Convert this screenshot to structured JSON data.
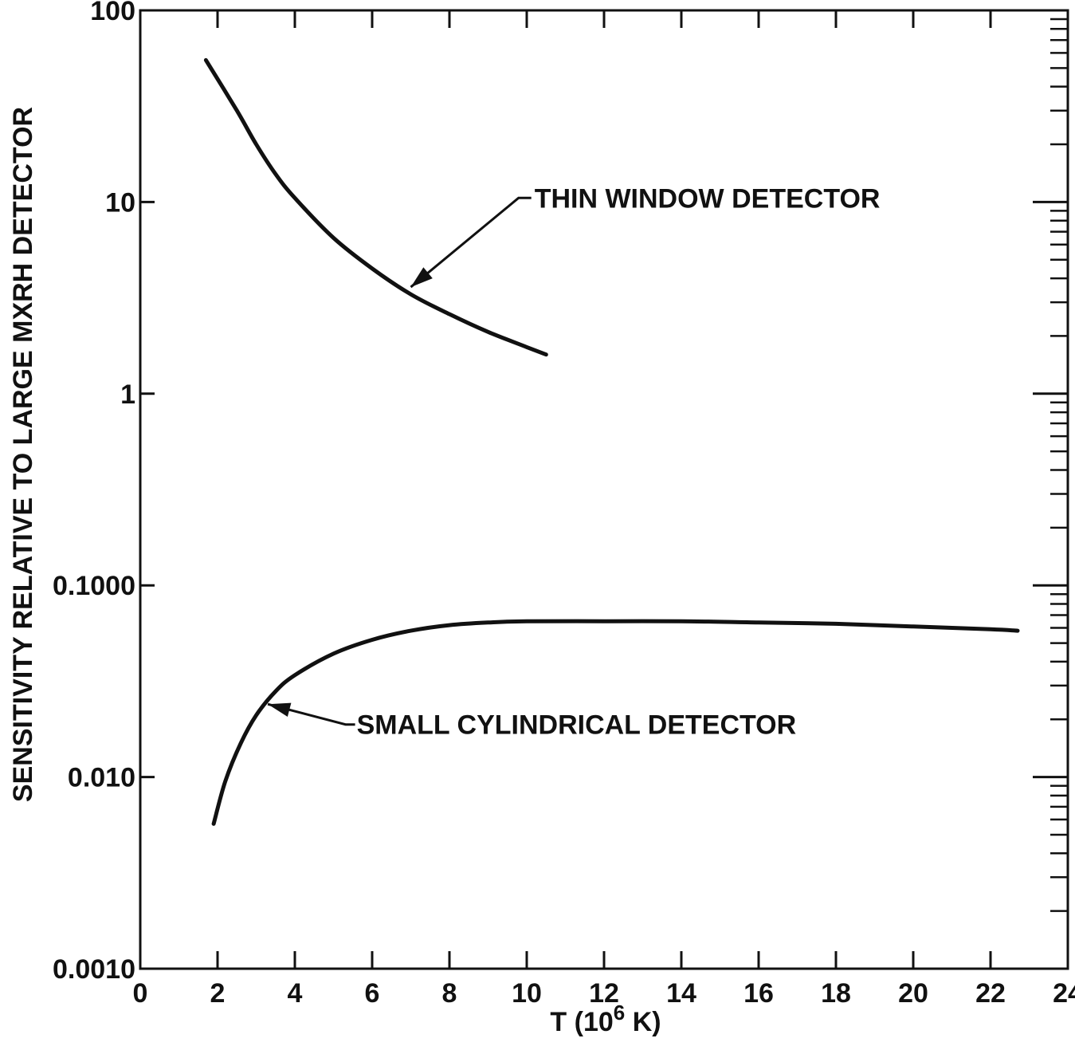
{
  "chart_data": {
    "type": "line",
    "title": "",
    "xlabel": "T (10",
    "xlabel_exp": "6",
    "xlabel_tail": " K)",
    "ylabel": "SENSITIVITY RELATIVE TO LARGE MXRH DETECTOR",
    "xlim": [
      0,
      24
    ],
    "ylim": [
      0.001,
      100
    ],
    "yscale": "log",
    "grid": false,
    "x_ticks": [
      0,
      2,
      4,
      6,
      8,
      10,
      12,
      14,
      16,
      18,
      20,
      22,
      24
    ],
    "x_tick_labels": [
      "0",
      "2",
      "4",
      "6",
      "8",
      "10",
      "12",
      "14",
      "16",
      "18",
      "20",
      "22",
      "24"
    ],
    "y_ticks": [
      0.001,
      0.01,
      0.1,
      1,
      10,
      100
    ],
    "y_tick_labels": [
      "0.0010",
      "0.010",
      "0.1000",
      "1",
      "10",
      "100"
    ],
    "series": [
      {
        "name": "THIN WINDOW DETECTOR",
        "x": [
          1.7,
          2.5,
          3.0,
          3.5,
          4.0,
          5.0,
          6.0,
          7.0,
          8.0,
          9.0,
          10.0,
          10.5
        ],
        "y": [
          55,
          30,
          20,
          14,
          10.5,
          6.5,
          4.5,
          3.3,
          2.6,
          2.1,
          1.75,
          1.6
        ]
      },
      {
        "name": "SMALL CYLINDRICAL DETECTOR",
        "x": [
          1.9,
          2.2,
          2.6,
          3.0,
          3.5,
          4.0,
          5.0,
          6.0,
          7.0,
          8.0,
          9.0,
          10.0,
          12.0,
          14.0,
          16.0,
          18.0,
          20.0,
          22.0,
          22.7
        ],
        "y": [
          0.0057,
          0.0095,
          0.015,
          0.021,
          0.028,
          0.034,
          0.044,
          0.052,
          0.058,
          0.062,
          0.064,
          0.065,
          0.065,
          0.065,
          0.064,
          0.063,
          0.061,
          0.059,
          0.058
        ]
      }
    ],
    "annotations": [
      {
        "text": "THIN WINDOW DETECTOR",
        "points_to": [
          7.0,
          3.6
        ],
        "label_at": [
          10.2,
          10.5
        ]
      },
      {
        "text": "SMALL CYLINDRICAL DETECTOR",
        "points_to": [
          3.3,
          0.024
        ],
        "label_at": [
          5.6,
          0.0188
        ]
      }
    ]
  }
}
